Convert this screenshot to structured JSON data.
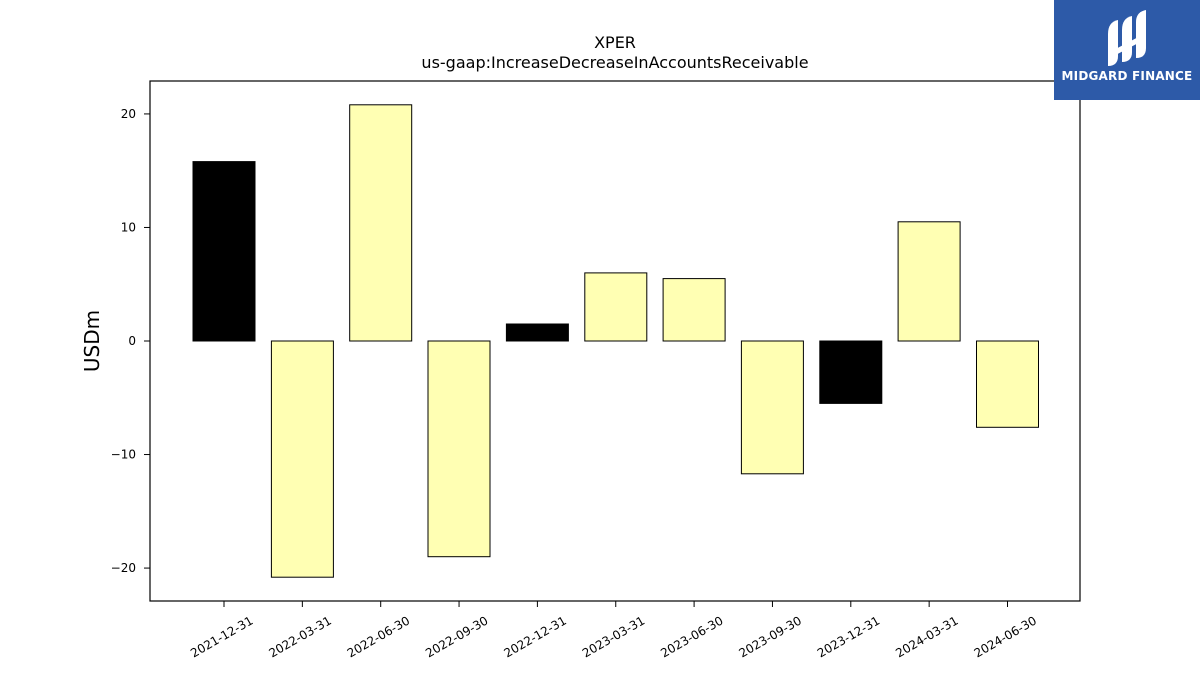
{
  "chart_data": {
    "type": "bar",
    "title": "XPER",
    "subtitle": "us-gaap:IncreaseDecreaseInAccountsReceivable",
    "xlabel": "",
    "ylabel": "USDm",
    "ylim": [
      -22.9,
      22.9
    ],
    "yticks": [
      -20,
      -10,
      0,
      10,
      20
    ],
    "ytick_labels": [
      "−20",
      "−10",
      "0",
      "10",
      "20"
    ],
    "categories": [
      "2021-12-31",
      "2022-03-31",
      "2022-06-30",
      "2022-09-30",
      "2022-12-31",
      "2023-03-31",
      "2023-06-30",
      "2023-09-30",
      "2023-12-31",
      "2024-03-31",
      "2024-06-30"
    ],
    "values": [
      15.8,
      -20.8,
      20.8,
      -19.0,
      1.5,
      6.0,
      5.5,
      -11.7,
      -5.5,
      10.5,
      -7.6
    ],
    "bar_colors": [
      "#000000",
      "#ffffb3",
      "#ffffb3",
      "#ffffb3",
      "#000000",
      "#ffffb3",
      "#ffffb3",
      "#ffffb3",
      "#000000",
      "#ffffb3",
      "#ffffb3"
    ],
    "grid": false
  },
  "logo": {
    "text": "MIDGARD FINANCE",
    "background": "#2d5aa8"
  }
}
